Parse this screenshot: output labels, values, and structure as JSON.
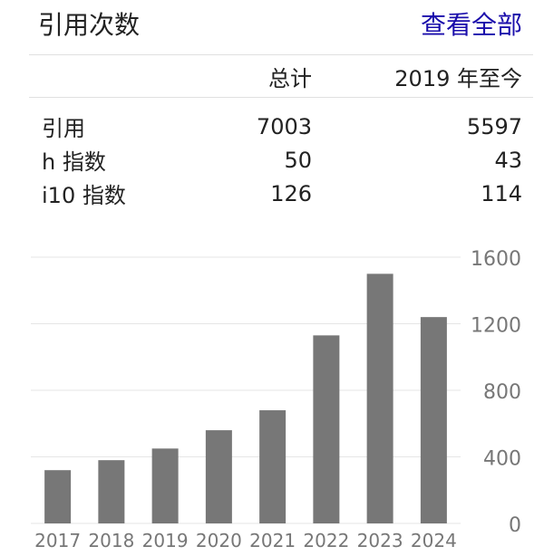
{
  "header": {
    "title": "引用次数",
    "view_all": "查看全部"
  },
  "table": {
    "columns": [
      "",
      "总计",
      "2019 年至今"
    ],
    "rows": [
      {
        "label": "引用",
        "total": "7003",
        "since": "5597"
      },
      {
        "label": "h 指数",
        "total": "50",
        "since": "43"
      },
      {
        "label": "i10 指数",
        "total": "126",
        "since": "114"
      }
    ]
  },
  "chart_data": {
    "type": "bar",
    "categories": [
      "2017",
      "2018",
      "2019",
      "2020",
      "2021",
      "2022",
      "2023",
      "2024"
    ],
    "values": [
      320,
      380,
      450,
      560,
      680,
      1130,
      1500,
      1240
    ],
    "ylim": [
      0,
      1600
    ],
    "yticks": [
      "0",
      "400",
      "800",
      "1200",
      "1600"
    ],
    "grid": true,
    "bar_color": "#777777"
  }
}
